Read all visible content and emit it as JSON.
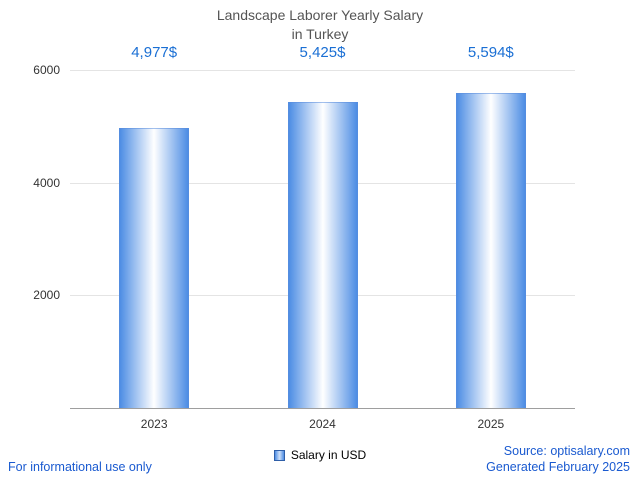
{
  "title": {
    "line1": "Landscape Laborer Yearly Salary",
    "line2": "in Turkey"
  },
  "chart_data": {
    "type": "bar",
    "title": "Landscape Laborer Yearly Salary in Turkey",
    "categories": [
      "2023",
      "2024",
      "2025"
    ],
    "values": [
      4977,
      5425,
      5594
    ],
    "value_labels": [
      "4,977$",
      "5,425$",
      "5,594$"
    ],
    "xlabel": "",
    "ylabel": "",
    "ylim": [
      0,
      6000
    ],
    "yticks": [
      2000,
      4000,
      6000
    ],
    "grid": true,
    "legend_entries": [
      "Salary in USD"
    ],
    "legend_position": "bottom",
    "bar_color": "#4d8de4",
    "bar_highlight": "#ffffff",
    "value_label_color": "#1a6fd4"
  },
  "legend": {
    "label": "Salary in USD"
  },
  "footer": {
    "disclaimer": "For informational use only",
    "source": "Source: optisalary.com",
    "generated": "Generated February 2025"
  }
}
